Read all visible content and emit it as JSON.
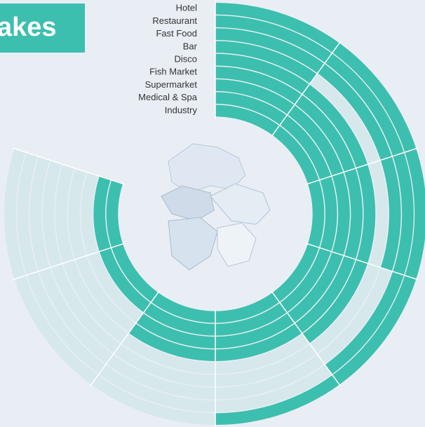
{
  "chart_data": {
    "type": "radial-bar",
    "title": "akes",
    "categories": [
      "Hotel",
      "Restaurant",
      "Fast Food",
      "Bar",
      "Disco",
      "Fish Market",
      "Supermarket",
      "Medical & Spa",
      "Industry"
    ],
    "values": [
      5,
      4,
      3,
      1,
      4,
      6,
      6,
      8,
      8
    ],
    "color": "#3cbfae",
    "track_color": "#d6e8ec",
    "xlim": [
      0,
      8
    ],
    "xticks": [
      0,
      1,
      2,
      3,
      4,
      5,
      6,
      7,
      8
    ]
  }
}
